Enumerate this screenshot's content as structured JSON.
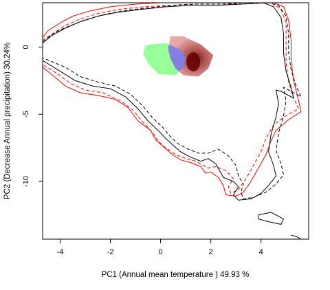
{
  "chart_data": {
    "type": "scatter",
    "title": "",
    "xlabel": "PC1 (Annual mean temperature ) 49.93 %",
    "ylabel": "PC2 (Decrease Annual precipitation) 30.24%",
    "xlim": [
      -4.7,
      5.9
    ],
    "ylim": [
      -14.3,
      3.3
    ],
    "x_ticks": [
      -4,
      -2,
      0,
      2,
      4
    ],
    "y_ticks": [
      0,
      -5,
      -10
    ],
    "x_tick_labels": [
      "-4",
      "-2",
      "0",
      "2",
      "4"
    ],
    "y_tick_labels": [
      "0",
      "-5",
      "-10"
    ],
    "grid": false,
    "legend": "none",
    "colors": {
      "contour_a": "#ff0000",
      "contour_b": "#000000",
      "niche_a": "#99ff99",
      "overlap": "#8080e6",
      "niche_b_light": "#e6a0a0",
      "niche_b_dark": "#660000"
    },
    "contours": [
      {
        "color": "#ff0000",
        "style": "solid",
        "points": [
          [
            -4.7,
            0.7
          ],
          [
            -4.5,
            1.2
          ],
          [
            -4.0,
            1.8
          ],
          [
            -3.5,
            2.3
          ],
          [
            -2.8,
            2.7
          ],
          [
            -2.0,
            3.0
          ],
          [
            -1.0,
            3.2
          ],
          [
            0.0,
            3.3
          ],
          [
            1.0,
            3.3
          ],
          [
            2.0,
            3.3
          ],
          [
            3.0,
            3.3
          ],
          [
            4.5,
            3.3
          ],
          [
            4.9,
            3.0
          ],
          [
            5.1,
            2.0
          ],
          [
            5.2,
            0.5
          ],
          [
            5.2,
            -1.0
          ],
          [
            5.3,
            -2.5
          ],
          [
            5.5,
            -4.0
          ],
          [
            5.6,
            -4.8
          ],
          [
            5.1,
            -5.4
          ],
          [
            4.6,
            -6.2
          ],
          [
            4.4,
            -7.0
          ],
          [
            4.2,
            -8.0
          ],
          [
            3.9,
            -9.0
          ],
          [
            3.6,
            -10.0
          ],
          [
            3.3,
            -10.8
          ],
          [
            3.0,
            -11.1
          ],
          [
            2.6,
            -11.0
          ],
          [
            2.5,
            -10.3
          ],
          [
            2.3,
            -9.7
          ],
          [
            2.0,
            -9.3
          ],
          [
            1.8,
            -9.4
          ],
          [
            1.6,
            -8.9
          ],
          [
            1.2,
            -8.6
          ],
          [
            0.8,
            -8.4
          ],
          [
            0.4,
            -7.9
          ],
          [
            0.1,
            -7.4
          ],
          [
            -0.2,
            -6.9
          ],
          [
            -0.4,
            -6.2
          ],
          [
            -0.9,
            -5.5
          ],
          [
            -1.3,
            -4.5
          ],
          [
            -1.8,
            -3.9
          ],
          [
            -2.5,
            -3.6
          ],
          [
            -3.2,
            -3.4
          ],
          [
            -3.8,
            -2.9
          ],
          [
            -4.3,
            -2.1
          ],
          [
            -4.7,
            -1.5
          ]
        ]
      },
      {
        "color": "#ff0000",
        "style": "dashed",
        "points": [
          [
            -4.7,
            0.5
          ],
          [
            -4.3,
            1.0
          ],
          [
            -3.8,
            1.6
          ],
          [
            -3.2,
            2.1
          ],
          [
            -2.5,
            2.5
          ],
          [
            -1.7,
            2.8
          ],
          [
            -0.7,
            3.0
          ],
          [
            0.3,
            3.1
          ],
          [
            1.3,
            3.2
          ],
          [
            2.3,
            3.2
          ],
          [
            3.3,
            3.2
          ],
          [
            4.4,
            3.3
          ],
          [
            4.8,
            2.8
          ],
          [
            5.0,
            1.8
          ],
          [
            5.0,
            0.3
          ],
          [
            5.0,
            -1.2
          ],
          [
            5.1,
            -2.6
          ],
          [
            5.3,
            -3.8
          ],
          [
            5.5,
            -4.6
          ],
          [
            5.0,
            -5.1
          ],
          [
            4.5,
            -5.8
          ],
          [
            4.2,
            -6.8
          ],
          [
            4.0,
            -7.8
          ],
          [
            3.7,
            -8.8
          ],
          [
            3.4,
            -9.8
          ],
          [
            3.1,
            -10.6
          ],
          [
            2.8,
            -10.9
          ],
          [
            2.7,
            -10.4
          ],
          [
            2.9,
            -9.8
          ],
          [
            2.6,
            -9.2
          ],
          [
            2.2,
            -8.9
          ],
          [
            1.9,
            -9.0
          ],
          [
            1.4,
            -8.5
          ],
          [
            1.0,
            -8.3
          ],
          [
            0.6,
            -8.0
          ],
          [
            0.2,
            -7.5
          ],
          [
            -0.1,
            -7.0
          ],
          [
            -0.3,
            -6.4
          ],
          [
            -0.7,
            -5.6
          ],
          [
            -1.1,
            -4.7
          ],
          [
            -1.6,
            -4.0
          ],
          [
            -2.3,
            -3.4
          ],
          [
            -3.0,
            -3.2
          ],
          [
            -3.6,
            -2.7
          ],
          [
            -4.1,
            -2.0
          ],
          [
            -4.7,
            -1.3
          ]
        ]
      },
      {
        "color": "#000000",
        "style": "solid",
        "points": [
          [
            -4.7,
            0.3
          ],
          [
            -4.3,
            0.9
          ],
          [
            -3.8,
            1.4
          ],
          [
            -3.2,
            1.9
          ],
          [
            -2.5,
            2.3
          ],
          [
            -1.7,
            2.6
          ],
          [
            -0.8,
            2.8
          ],
          [
            0.2,
            3.0
          ],
          [
            1.2,
            3.1
          ],
          [
            2.2,
            3.1
          ],
          [
            3.2,
            3.2
          ],
          [
            4.1,
            3.3
          ],
          [
            4.5,
            3.0
          ],
          [
            4.8,
            2.2
          ],
          [
            4.9,
            1.0
          ],
          [
            4.9,
            -0.5
          ],
          [
            5.0,
            -1.8
          ],
          [
            5.2,
            -3.0
          ],
          [
            5.3,
            -3.8
          ],
          [
            4.8,
            -3.3
          ],
          [
            4.6,
            -3.2
          ],
          [
            4.7,
            -4.2
          ],
          [
            4.6,
            -5.2
          ],
          [
            4.4,
            -6.5
          ],
          [
            4.3,
            -7.8
          ],
          [
            4.5,
            -8.8
          ],
          [
            4.6,
            -9.6
          ],
          [
            4.3,
            -10.3
          ],
          [
            4.0,
            -10.9
          ],
          [
            3.6,
            -11.3
          ],
          [
            3.1,
            -11.4
          ],
          [
            2.9,
            -11.0
          ],
          [
            3.1,
            -10.4
          ],
          [
            2.9,
            -10.0
          ],
          [
            2.5,
            -9.7
          ],
          [
            2.2,
            -8.7
          ],
          [
            1.9,
            -8.3
          ],
          [
            1.6,
            -8.5
          ],
          [
            1.2,
            -8.2
          ],
          [
            0.8,
            -7.8
          ],
          [
            0.5,
            -7.3
          ],
          [
            0.2,
            -6.8
          ],
          [
            -0.1,
            -6.2
          ],
          [
            -0.5,
            -5.5
          ],
          [
            -0.9,
            -4.6
          ],
          [
            -1.4,
            -3.7
          ],
          [
            -2.0,
            -3.1
          ],
          [
            -2.7,
            -2.9
          ],
          [
            -3.4,
            -2.5
          ],
          [
            -4.0,
            -1.8
          ],
          [
            -4.7,
            -1.0
          ]
        ]
      },
      {
        "color": "#000000",
        "style": "dashed",
        "points": [
          [
            -4.7,
            0.4
          ],
          [
            -4.2,
            1.1
          ],
          [
            -3.6,
            1.6
          ],
          [
            -3.0,
            2.0
          ],
          [
            -2.3,
            2.4
          ],
          [
            -1.5,
            2.7
          ],
          [
            -0.6,
            2.9
          ],
          [
            0.4,
            3.1
          ],
          [
            1.4,
            3.2
          ],
          [
            2.4,
            3.2
          ],
          [
            3.4,
            3.3
          ],
          [
            4.3,
            3.3
          ],
          [
            4.7,
            3.1
          ],
          [
            5.0,
            2.3
          ],
          [
            5.1,
            1.0
          ],
          [
            5.1,
            -0.4
          ],
          [
            5.2,
            -1.7
          ],
          [
            5.4,
            -2.9
          ],
          [
            5.6,
            -3.7
          ],
          [
            5.1,
            -3.2
          ],
          [
            4.9,
            -3.0
          ],
          [
            5.0,
            -4.0
          ],
          [
            4.9,
            -5.1
          ],
          [
            4.7,
            -6.4
          ],
          [
            4.6,
            -7.7
          ],
          [
            4.8,
            -8.7
          ],
          [
            4.9,
            -9.5
          ],
          [
            4.6,
            -10.2
          ],
          [
            4.2,
            -10.8
          ],
          [
            3.7,
            -11.2
          ],
          [
            3.3,
            -11.3
          ],
          [
            3.2,
            -10.8
          ],
          [
            3.3,
            -10.2
          ],
          [
            3.1,
            -9.6
          ],
          [
            3.0,
            -8.8
          ],
          [
            2.7,
            -8.1
          ],
          [
            2.3,
            -7.6
          ],
          [
            1.9,
            -7.9
          ],
          [
            1.5,
            -7.9
          ],
          [
            1.1,
            -7.6
          ],
          [
            0.7,
            -7.2
          ],
          [
            0.4,
            -6.7
          ],
          [
            0.1,
            -6.0
          ],
          [
            -0.3,
            -5.3
          ],
          [
            -0.7,
            -4.4
          ],
          [
            -1.2,
            -3.5
          ],
          [
            -1.8,
            -2.9
          ],
          [
            -2.5,
            -2.6
          ],
          [
            -3.2,
            -2.2
          ],
          [
            -3.8,
            -1.5
          ],
          [
            -4.7,
            -0.8
          ]
        ]
      },
      {
        "color": "#000000",
        "style": "solid",
        "points": [
          [
            3.9,
            -12.5
          ],
          [
            4.4,
            -12.3
          ],
          [
            4.9,
            -12.8
          ],
          [
            4.8,
            -13.2
          ],
          [
            4.3,
            -13.0
          ],
          [
            3.9,
            -12.8
          ],
          [
            3.9,
            -12.5
          ]
        ]
      },
      {
        "color": "#000000",
        "style": "solid",
        "points": [
          [
            5.2,
            -14.0
          ],
          [
            5.4,
            -14.1
          ],
          [
            5.6,
            -14.3
          ]
        ]
      }
    ],
    "niche_a": {
      "name": "",
      "color": "#99ff99",
      "points": [
        [
          -0.4,
          0.2
        ],
        [
          0.2,
          0.3
        ],
        [
          0.8,
          -0.2
        ],
        [
          1.0,
          -0.8
        ],
        [
          0.9,
          -1.5
        ],
        [
          0.6,
          -2.1
        ],
        [
          -0.1,
          -2.0
        ],
        [
          -0.5,
          -1.2
        ],
        [
          -0.7,
          -0.5
        ],
        [
          -0.6,
          0.1
        ]
      ]
    },
    "niche_b": {
      "name": "",
      "color": "#e6a0a0",
      "peak": [
        1.3,
        -1.1
      ],
      "points": [
        [
          0.4,
          0.8
        ],
        [
          0.9,
          0.8
        ],
        [
          1.6,
          0.2
        ],
        [
          2.1,
          -0.6
        ],
        [
          1.9,
          -1.6
        ],
        [
          1.5,
          -2.2
        ],
        [
          0.9,
          -2.1
        ],
        [
          0.6,
          -1.6
        ],
        [
          0.4,
          -0.9
        ],
        [
          0.3,
          -0.1
        ]
      ]
    }
  }
}
